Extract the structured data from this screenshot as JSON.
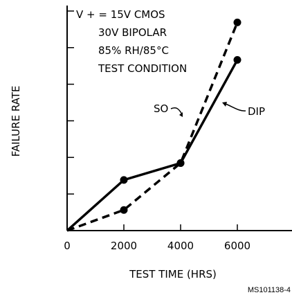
{
  "chart_data": {
    "type": "line",
    "xlabel": "TEST TIME (HRS)",
    "ylabel": "FAILURE RATE",
    "xlim": [
      0,
      8000
    ],
    "ylim": [
      0,
      12
    ],
    "x_ticks": [
      "0",
      "2000",
      "4000",
      "6000"
    ],
    "y_tick_count": 6,
    "grid": false,
    "annotation_lines": [
      "V + = 15V CMOS",
      "30V BIPOLAR",
      "85% RH/85°C",
      "TEST CONDITION"
    ],
    "series": [
      {
        "name": "DIP",
        "style": "solid",
        "x": [
          0,
          2000,
          4000,
          6000
        ],
        "y": [
          0,
          2.7,
          3.6,
          9.1
        ]
      },
      {
        "name": "SO",
        "style": "dashed",
        "x": [
          0,
          2000,
          4000,
          6000
        ],
        "y": [
          0,
          1.1,
          3.6,
          11.1
        ]
      }
    ],
    "figure_code": "MS101138-4"
  }
}
